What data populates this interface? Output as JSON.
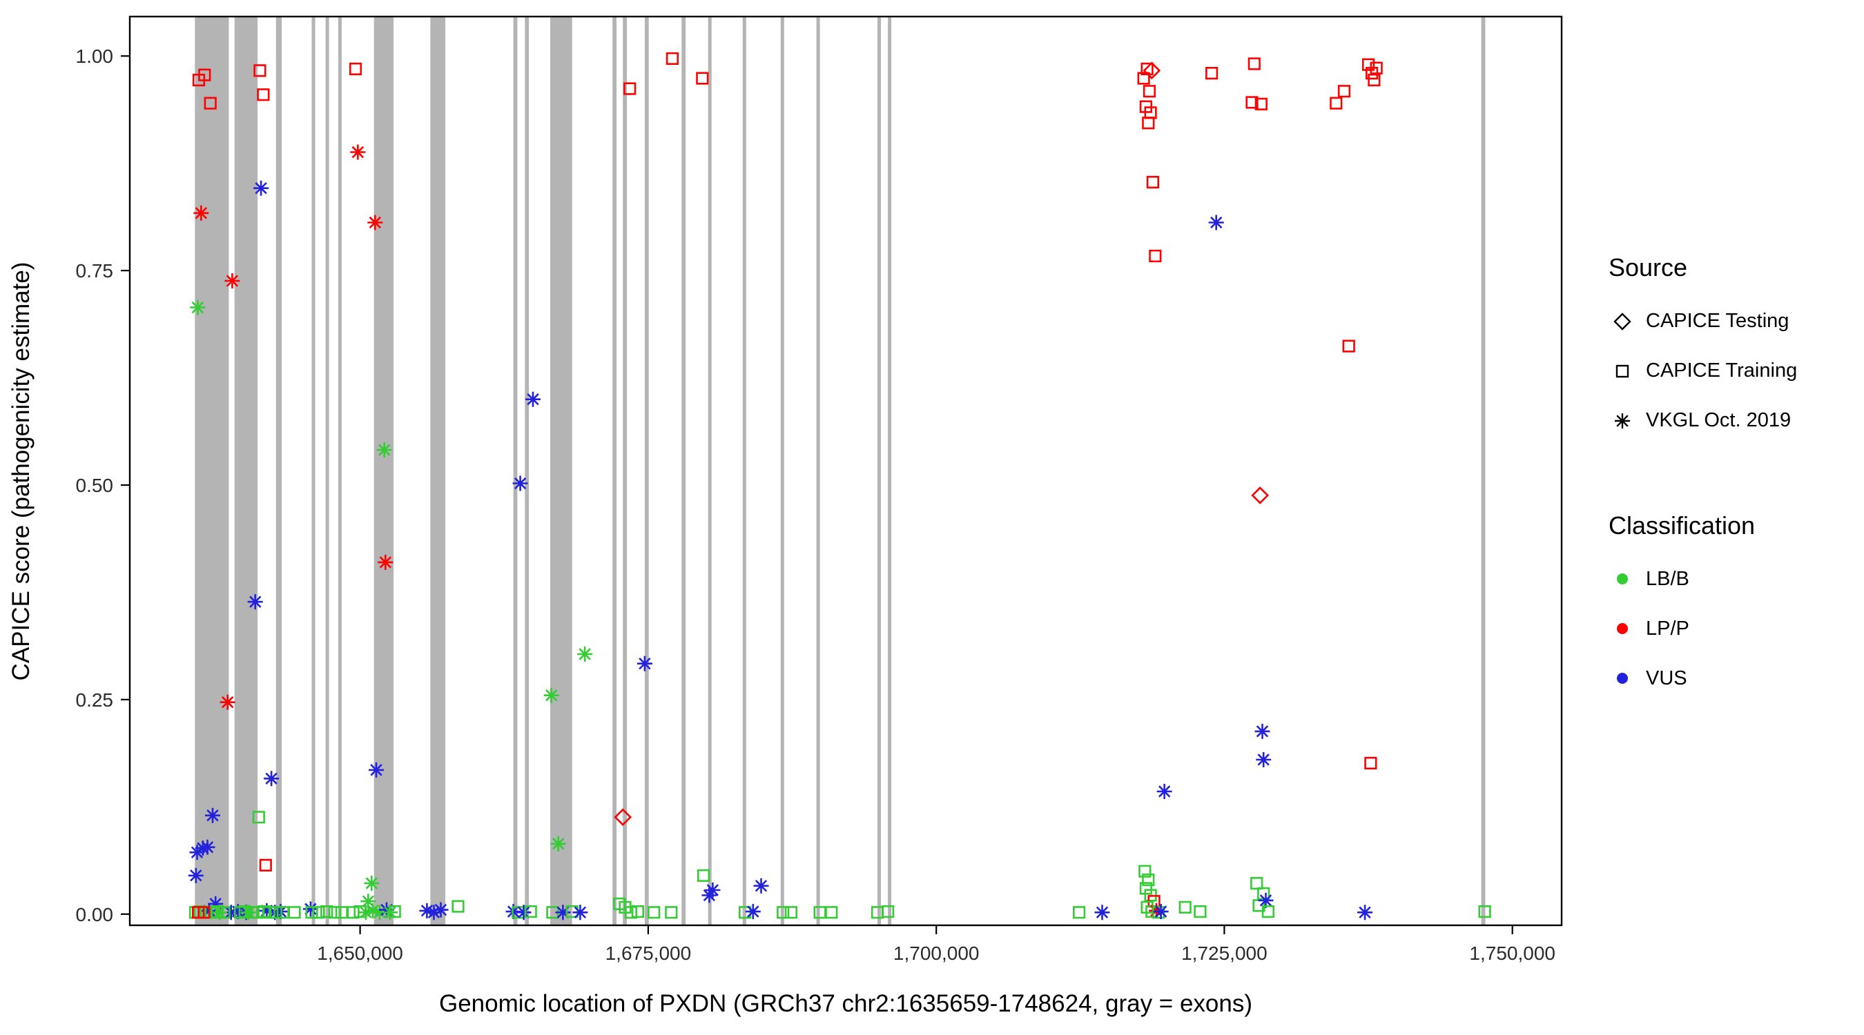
{
  "figure": {
    "background": "#FFFFFF",
    "panel_border_color": "#000000",
    "exon_color": "#B4B4B4",
    "tick_label_color": "#2B2B2B",
    "axis_title_color": "#000000"
  },
  "chart_data": {
    "type": "scatter",
    "title": "",
    "xlabel": "Genomic location of PXDN (GRCh37 chr2:1635659-1748624, gray = exons)",
    "ylabel": "CAPICE score (pathogenicity estimate)",
    "xlim": [
      1630011,
      1754272
    ],
    "ylim": [
      -0.013,
      1.046
    ],
    "grid": false,
    "legend_position": "right",
    "x_ticks": [
      {
        "v": 1650000,
        "label": "1,650,000"
      },
      {
        "v": 1675000,
        "label": "1,675,000"
      },
      {
        "v": 1700000,
        "label": "1,700,000"
      },
      {
        "v": 1725000,
        "label": "1,725,000"
      },
      {
        "v": 1750000,
        "label": "1,750,000"
      }
    ],
    "y_ticks": [
      {
        "v": 0.0,
        "label": "0.00"
      },
      {
        "v": 0.25,
        "label": "0.25"
      },
      {
        "v": 0.5,
        "label": "0.50"
      },
      {
        "v": 0.75,
        "label": "0.75"
      },
      {
        "v": 1.0,
        "label": "1.00"
      }
    ],
    "exons": [
      [
        1635659,
        1638600
      ],
      [
        1639100,
        1641100
      ],
      [
        1642700,
        1643200
      ],
      [
        1645800,
        1646100
      ],
      [
        1647000,
        1647300
      ],
      [
        1648100,
        1648400
      ],
      [
        1651200,
        1652900
      ],
      [
        1656100,
        1657400
      ],
      [
        1663300,
        1663650
      ],
      [
        1664300,
        1664650
      ],
      [
        1666500,
        1668400
      ],
      [
        1671900,
        1672250
      ],
      [
        1672800,
        1673150
      ],
      [
        1674700,
        1675050
      ],
      [
        1677900,
        1678250
      ],
      [
        1680200,
        1680500
      ],
      [
        1683200,
        1683500
      ],
      [
        1686500,
        1686800
      ],
      [
        1689600,
        1689900
      ],
      [
        1694900,
        1695200
      ],
      [
        1695800,
        1696100
      ],
      [
        1747300,
        1747650
      ]
    ],
    "source_markers": {
      "testing": "diamond",
      "training": "square",
      "vkgl": "asterisk"
    },
    "class_colors": {
      "LB/B": "#33CC33",
      "LP/P": "#FF0000",
      "VUS": "#2222DD"
    },
    "points_format": [
      "genomic_position",
      "capice_score",
      "source",
      "classification"
    ],
    "points": [
      [
        1636000,
        0.972,
        "training",
        "LP/P"
      ],
      [
        1636500,
        0.978,
        "training",
        "LP/P"
      ],
      [
        1637000,
        0.945,
        "training",
        "LP/P"
      ],
      [
        1636200,
        0.817,
        "vkgl",
        "LP/P"
      ],
      [
        1635900,
        0.707,
        "vkgl",
        "LB/B"
      ],
      [
        1638900,
        0.738,
        "vkgl",
        "LP/P"
      ],
      [
        1638500,
        0.247,
        "vkgl",
        "LP/P"
      ],
      [
        1641300,
        0.983,
        "training",
        "LP/P"
      ],
      [
        1641600,
        0.955,
        "training",
        "LP/P"
      ],
      [
        1641400,
        0.846,
        "vkgl",
        "VUS"
      ],
      [
        1640900,
        0.364,
        "vkgl",
        "VUS"
      ],
      [
        1642300,
        0.158,
        "vkgl",
        "VUS"
      ],
      [
        1641200,
        0.113,
        "training",
        "LB/B"
      ],
      [
        1641800,
        0.057,
        "training",
        "LP/P"
      ],
      [
        1635750,
        0.045,
        "vkgl",
        "VUS"
      ],
      [
        1635850,
        0.072,
        "vkgl",
        "VUS"
      ],
      [
        1636350,
        0.077,
        "vkgl",
        "VUS"
      ],
      [
        1636750,
        0.078,
        "vkgl",
        "VUS"
      ],
      [
        1637200,
        0.115,
        "vkgl",
        "VUS"
      ],
      [
        1637450,
        0.012,
        "vkgl",
        "VUS"
      ],
      [
        1636900,
        0.004,
        "vkgl",
        "VUS"
      ],
      [
        1638800,
        0.002,
        "vkgl",
        "VUS"
      ],
      [
        1639400,
        0.003,
        "vkgl",
        "VUS"
      ],
      [
        1640100,
        0.002,
        "vkgl",
        "VUS"
      ],
      [
        1641900,
        0.004,
        "vkgl",
        "VUS"
      ],
      [
        1642600,
        0.002,
        "vkgl",
        "VUS"
      ],
      [
        1643100,
        0.003,
        "vkgl",
        "VUS"
      ],
      [
        1635700,
        0.002,
        "training",
        "LB/B"
      ],
      [
        1636100,
        0.003,
        "training",
        "LB/B"
      ],
      [
        1636550,
        0.002,
        "training",
        "LB/B"
      ],
      [
        1637050,
        0.002,
        "training",
        "LB/B"
      ],
      [
        1637600,
        0.003,
        "training",
        "LB/B"
      ],
      [
        1638200,
        0.002,
        "training",
        "LB/B"
      ],
      [
        1639600,
        0.002,
        "training",
        "LB/B"
      ],
      [
        1640000,
        0.003,
        "training",
        "LB/B"
      ],
      [
        1640600,
        0.002,
        "training",
        "LB/B"
      ],
      [
        1641100,
        0.002,
        "training",
        "LB/B"
      ],
      [
        1641650,
        0.003,
        "training",
        "LB/B"
      ],
      [
        1642100,
        0.002,
        "training",
        "LB/B"
      ],
      [
        1642700,
        0.002,
        "training",
        "LB/B"
      ],
      [
        1643300,
        0.002,
        "training",
        "LB/B"
      ],
      [
        1635950,
        0.002,
        "training",
        "LP/P"
      ],
      [
        1636450,
        0.002,
        "training",
        "LP/P"
      ],
      [
        1637800,
        0.002,
        "vkgl",
        "LB/B"
      ],
      [
        1640300,
        0.002,
        "vkgl",
        "LB/B"
      ],
      [
        1644300,
        0.002,
        "training",
        "LB/B"
      ],
      [
        1645700,
        0.006,
        "vkgl",
        "VUS"
      ],
      [
        1645800,
        0.002,
        "training",
        "LB/B"
      ],
      [
        1646400,
        0.002,
        "training",
        "LB/B"
      ],
      [
        1647100,
        0.003,
        "training",
        "LB/B"
      ],
      [
        1647800,
        0.002,
        "training",
        "LB/B"
      ],
      [
        1648400,
        0.002,
        "training",
        "LB/B"
      ],
      [
        1649600,
        0.985,
        "training",
        "LP/P"
      ],
      [
        1649800,
        0.888,
        "vkgl",
        "LP/P"
      ],
      [
        1651300,
        0.806,
        "vkgl",
        "LP/P"
      ],
      [
        1652100,
        0.541,
        "vkgl",
        "LB/B"
      ],
      [
        1652200,
        0.41,
        "vkgl",
        "LP/P"
      ],
      [
        1651400,
        0.168,
        "vkgl",
        "VUS"
      ],
      [
        1651000,
        0.036,
        "vkgl",
        "LB/B"
      ],
      [
        1650700,
        0.015,
        "vkgl",
        "LB/B"
      ],
      [
        1649400,
        0.002,
        "training",
        "LB/B"
      ],
      [
        1650000,
        0.003,
        "training",
        "LB/B"
      ],
      [
        1650500,
        0.002,
        "vkgl",
        "LB/B"
      ],
      [
        1651100,
        0.004,
        "vkgl",
        "LB/B"
      ],
      [
        1651700,
        0.002,
        "vkgl",
        "LB/B"
      ],
      [
        1652300,
        0.005,
        "vkgl",
        "VUS"
      ],
      [
        1652600,
        0.002,
        "vkgl",
        "LB/B"
      ],
      [
        1653000,
        0.003,
        "training",
        "LB/B"
      ],
      [
        1655800,
        0.004,
        "vkgl",
        "VUS"
      ],
      [
        1656400,
        0.002,
        "vkgl",
        "VUS"
      ],
      [
        1657000,
        0.005,
        "vkgl",
        "VUS"
      ],
      [
        1658500,
        0.009,
        "training",
        "LB/B"
      ],
      [
        1663900,
        0.502,
        "vkgl",
        "VUS"
      ],
      [
        1665000,
        0.6,
        "vkgl",
        "VUS"
      ],
      [
        1666600,
        0.255,
        "vkgl",
        "LB/B"
      ],
      [
        1667200,
        0.082,
        "vkgl",
        "LB/B"
      ],
      [
        1669500,
        0.303,
        "vkgl",
        "LB/B"
      ],
      [
        1663300,
        0.003,
        "vkgl",
        "VUS"
      ],
      [
        1663700,
        0.002,
        "training",
        "LB/B"
      ],
      [
        1664200,
        0.002,
        "vkgl",
        "VUS"
      ],
      [
        1664800,
        0.003,
        "training",
        "LB/B"
      ],
      [
        1666700,
        0.002,
        "training",
        "LB/B"
      ],
      [
        1667600,
        0.002,
        "vkgl",
        "VUS"
      ],
      [
        1668400,
        0.003,
        "training",
        "LB/B"
      ],
      [
        1669100,
        0.002,
        "vkgl",
        "VUS"
      ],
      [
        1672800,
        0.113,
        "testing",
        "LP/P"
      ],
      [
        1673400,
        0.962,
        "training",
        "LP/P"
      ],
      [
        1674700,
        0.292,
        "vkgl",
        "VUS"
      ],
      [
        1677100,
        0.997,
        "training",
        "LP/P"
      ],
      [
        1679700,
        0.974,
        "training",
        "LP/P"
      ],
      [
        1672500,
        0.012,
        "training",
        "LB/B"
      ],
      [
        1673000,
        0.008,
        "training",
        "LB/B"
      ],
      [
        1673500,
        0.002,
        "training",
        "LB/B"
      ],
      [
        1674100,
        0.003,
        "training",
        "LB/B"
      ],
      [
        1675500,
        0.002,
        "training",
        "LB/B"
      ],
      [
        1677000,
        0.002,
        "training",
        "LB/B"
      ],
      [
        1679800,
        0.045,
        "training",
        "LB/B"
      ],
      [
        1680300,
        0.022,
        "vkgl",
        "VUS"
      ],
      [
        1680600,
        0.028,
        "vkgl",
        "VUS"
      ],
      [
        1684800,
        0.033,
        "vkgl",
        "VUS"
      ],
      [
        1683400,
        0.002,
        "training",
        "LB/B"
      ],
      [
        1684100,
        0.003,
        "vkgl",
        "VUS"
      ],
      [
        1686700,
        0.002,
        "training",
        "LB/B"
      ],
      [
        1687400,
        0.002,
        "training",
        "LB/B"
      ],
      [
        1689900,
        0.002,
        "training",
        "LB/B"
      ],
      [
        1690900,
        0.002,
        "training",
        "LB/B"
      ],
      [
        1694900,
        0.002,
        "training",
        "LB/B"
      ],
      [
        1695800,
        0.003,
        "training",
        "LB/B"
      ],
      [
        1712400,
        0.002,
        "training",
        "LB/B"
      ],
      [
        1714400,
        0.002,
        "vkgl",
        "VUS"
      ],
      [
        1718000,
        0.974,
        "training",
        "LP/P"
      ],
      [
        1718300,
        0.985,
        "training",
        "LP/P"
      ],
      [
        1718700,
        0.983,
        "testing",
        "LP/P"
      ],
      [
        1718500,
        0.959,
        "training",
        "LP/P"
      ],
      [
        1718200,
        0.941,
        "training",
        "LP/P"
      ],
      [
        1718600,
        0.934,
        "training",
        "LP/P"
      ],
      [
        1718400,
        0.922,
        "training",
        "LP/P"
      ],
      [
        1718800,
        0.853,
        "training",
        "LP/P"
      ],
      [
        1719000,
        0.767,
        "training",
        "LP/P"
      ],
      [
        1719800,
        0.143,
        "vkgl",
        "VUS"
      ],
      [
        1718100,
        0.05,
        "training",
        "LB/B"
      ],
      [
        1718400,
        0.04,
        "training",
        "LB/B"
      ],
      [
        1718200,
        0.03,
        "training",
        "LB/B"
      ],
      [
        1718600,
        0.022,
        "training",
        "LB/B"
      ],
      [
        1718900,
        0.015,
        "training",
        "LP/P"
      ],
      [
        1718300,
        0.008,
        "training",
        "LB/B"
      ],
      [
        1718700,
        0.003,
        "training",
        "LB/B"
      ],
      [
        1719100,
        0.004,
        "vkgl",
        "LP/P"
      ],
      [
        1719300,
        0.002,
        "training",
        "LB/B"
      ],
      [
        1719500,
        0.003,
        "vkgl",
        "VUS"
      ],
      [
        1721600,
        0.008,
        "training",
        "LB/B"
      ],
      [
        1722900,
        0.003,
        "training",
        "LB/B"
      ],
      [
        1723900,
        0.98,
        "training",
        "LP/P"
      ],
      [
        1724300,
        0.806,
        "vkgl",
        "VUS"
      ],
      [
        1727600,
        0.991,
        "training",
        "LP/P"
      ],
      [
        1727400,
        0.946,
        "training",
        "LP/P"
      ],
      [
        1728200,
        0.944,
        "training",
        "LP/P"
      ],
      [
        1728100,
        0.488,
        "testing",
        "LP/P"
      ],
      [
        1728300,
        0.213,
        "vkgl",
        "VUS"
      ],
      [
        1728400,
        0.18,
        "vkgl",
        "VUS"
      ],
      [
        1727800,
        0.036,
        "training",
        "LB/B"
      ],
      [
        1728400,
        0.024,
        "training",
        "LB/B"
      ],
      [
        1728000,
        0.01,
        "training",
        "LB/B"
      ],
      [
        1728600,
        0.016,
        "vkgl",
        "VUS"
      ],
      [
        1728800,
        0.003,
        "training",
        "LB/B"
      ],
      [
        1734700,
        0.945,
        "training",
        "LP/P"
      ],
      [
        1735400,
        0.959,
        "training",
        "LP/P"
      ],
      [
        1735800,
        0.662,
        "training",
        "LP/P"
      ],
      [
        1737500,
        0.99,
        "training",
        "LP/P"
      ],
      [
        1737800,
        0.98,
        "training",
        "LP/P"
      ],
      [
        1738000,
        0.972,
        "training",
        "LP/P"
      ],
      [
        1738200,
        0.986,
        "training",
        "LP/P"
      ],
      [
        1737700,
        0.176,
        "training",
        "LP/P"
      ],
      [
        1737200,
        0.002,
        "vkgl",
        "VUS"
      ],
      [
        1747600,
        0.003,
        "training",
        "LB/B"
      ]
    ]
  },
  "legend": {
    "source": {
      "title": "Source",
      "items": [
        {
          "label": "CAPICE Testing",
          "marker": "diamond"
        },
        {
          "label": "CAPICE Training",
          "marker": "square"
        },
        {
          "label": "VKGL Oct. 2019",
          "marker": "asterisk"
        }
      ]
    },
    "classification": {
      "title": "Classification",
      "items": [
        {
          "label": "LB/B",
          "color": "#33CC33"
        },
        {
          "label": "LP/P",
          "color": "#FF0000"
        },
        {
          "label": "VUS",
          "color": "#2222DD"
        }
      ]
    }
  }
}
